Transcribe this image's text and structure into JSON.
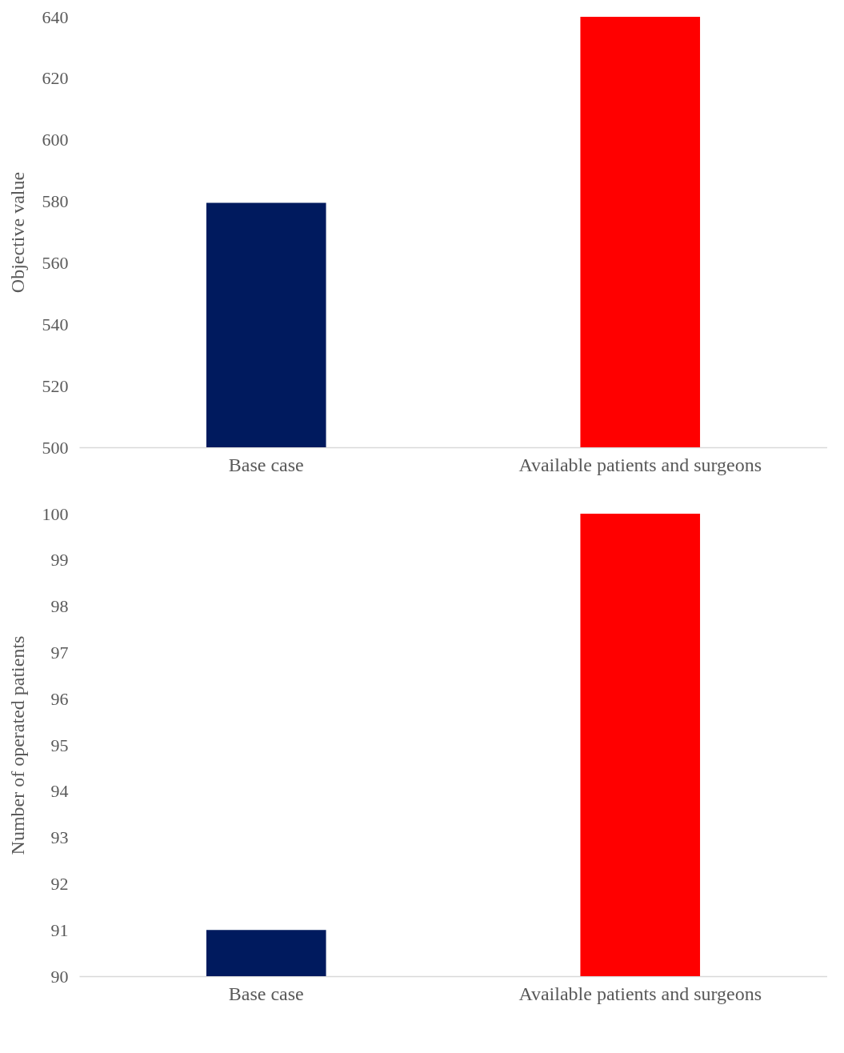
{
  "chart_data": [
    {
      "type": "bar",
      "categories": [
        "Base case",
        "Available patients and surgeons"
      ],
      "values": [
        579.5,
        640
      ],
      "colors": [
        "#001a5e",
        "#ff0000"
      ],
      "ylabel": "Objective value",
      "ylim": [
        500,
        640
      ],
      "yticks": [
        500,
        520,
        540,
        560,
        580,
        600,
        620,
        640
      ]
    },
    {
      "type": "bar",
      "categories": [
        "Base case",
        "Available patients and surgeons"
      ],
      "values": [
        91,
        100
      ],
      "colors": [
        "#001a5e",
        "#ff0000"
      ],
      "ylabel": "Number of operated patients",
      "ylim": [
        90,
        100
      ],
      "yticks": [
        90,
        91,
        92,
        93,
        94,
        95,
        96,
        97,
        98,
        99,
        100
      ]
    }
  ]
}
